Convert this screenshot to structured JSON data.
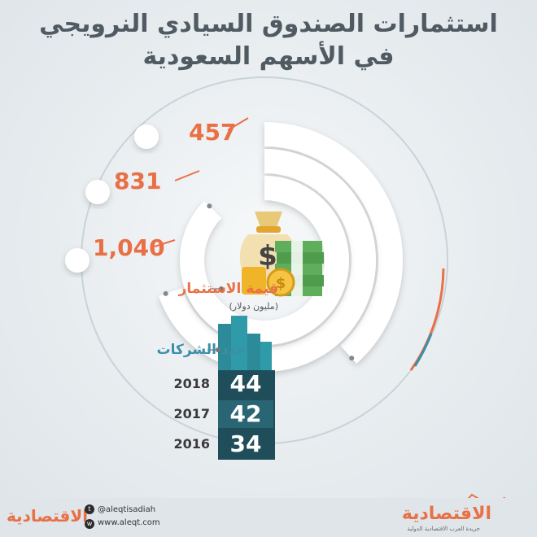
{
  "title": {
    "line1": "استثمارات الصندوق السيادي النرويجي",
    "line2": "في الأسهم السعودية"
  },
  "chart_data": {
    "type": "radial-bar",
    "categories": [
      "2018",
      "2017",
      "2016"
    ],
    "series": [
      {
        "name": "قيمة الاستثمار",
        "unit": "(مليون دولار)",
        "values": [
          457,
          831,
          1040
        ],
        "labels": [
          "457",
          "831",
          "1,040"
        ]
      },
      {
        "name": "عدد الشركات",
        "values": [
          44,
          42,
          34
        ]
      }
    ]
  },
  "labels": {
    "investment": "قيمة الاستثمار",
    "investment_unit": "(مليون دولار)",
    "companies": "عدد الشركات"
  },
  "rows": [
    {
      "year": "2018",
      "count": "44"
    },
    {
      "year": "2017",
      "count": "42"
    },
    {
      "year": "2016",
      "count": "34"
    }
  ],
  "footer": {
    "logo": "الاقتصادية",
    "handle": "@aleqtisadiah",
    "website": "www.aleqt.com",
    "logo_right": "الاقتصادية",
    "tagline": "جريدة العرب الاقتصادية الدولية"
  },
  "colors": {
    "accent": "#e96f45",
    "teal": "#3b8fa8",
    "dark_teal": "#1f4e5a",
    "ring": "#ffffff"
  },
  "icons": [
    "money-bag-icon",
    "cash-stack-icon",
    "coins-icon",
    "buildings-icon",
    "instagram-icon",
    "twitter-icon",
    "web-icon"
  ]
}
